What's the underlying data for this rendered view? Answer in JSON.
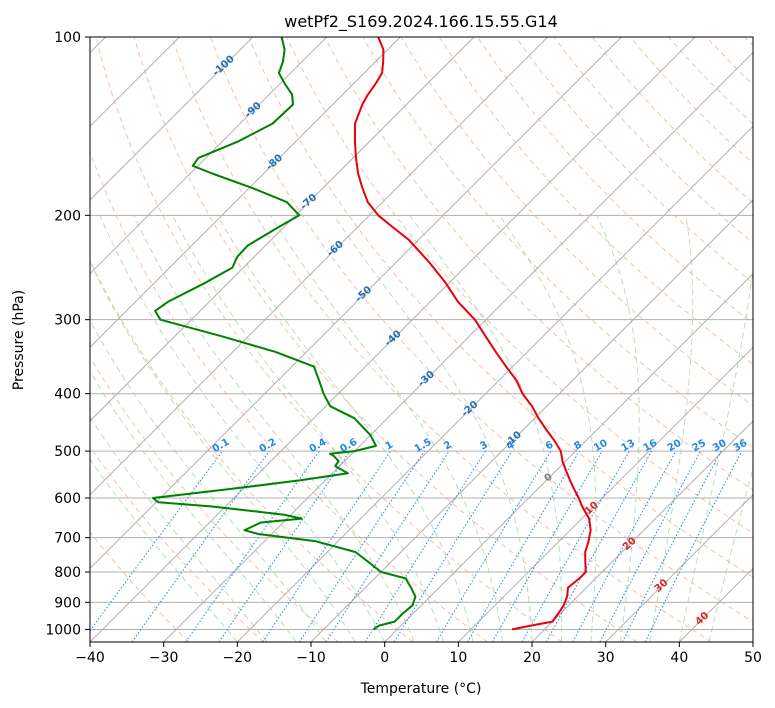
{
  "chart_data": {
    "type": "skew-t",
    "title": "wetPf2_S169.2024.166.15.55.G14",
    "xlabel": "Temperature (°C)",
    "ylabel": "Pressure (hPa)",
    "xlim": [
      -40,
      50
    ],
    "ylim": [
      1050,
      100
    ],
    "y_scale": "log",
    "grid": true,
    "x_ticks": [
      -40,
      -30,
      -20,
      -10,
      0,
      10,
      20,
      30,
      40,
      50
    ],
    "y_ticks": [
      100,
      200,
      300,
      400,
      500,
      600,
      700,
      800,
      900,
      1000
    ],
    "colors": {
      "temperature": "#e8000b",
      "dewpoint": "#008000",
      "isotherm": "#b0b0b0",
      "dry_adiabat": "#f4a582",
      "moist_adiabat": "#a6d7a0",
      "mixing_ratio": "#1e88e5",
      "isotherm_label_blue": "#1f6fb4",
      "isotherm_label_red": "#d62728"
    },
    "isotherm_labels": [
      {
        "t": -100,
        "p": 112,
        "text": "-100"
      },
      {
        "t": -90,
        "p": 133,
        "text": "-90"
      },
      {
        "t": -80,
        "p": 163,
        "text": "-80"
      },
      {
        "t": -70,
        "p": 190,
        "text": "-70"
      },
      {
        "t": -60,
        "p": 228,
        "text": "-60"
      },
      {
        "t": -50,
        "p": 272,
        "text": "-50"
      },
      {
        "t": -40,
        "p": 323,
        "text": "-40"
      },
      {
        "t": -30,
        "p": 378,
        "text": "-30"
      },
      {
        "t": -20,
        "p": 425,
        "text": "-20"
      },
      {
        "t": -10,
        "p": 478,
        "text": "-10"
      },
      {
        "t": 0,
        "p": 555,
        "text": "0"
      },
      {
        "t": 10,
        "p": 625,
        "text": "10"
      },
      {
        "t": 20,
        "p": 718,
        "text": "20"
      },
      {
        "t": 30,
        "p": 845,
        "text": "30"
      },
      {
        "t": 40,
        "p": 960,
        "text": "40"
      }
    ],
    "mixing_ratio_labels": [
      "0.1",
      "0.2",
      "0.4",
      "0.6",
      "1",
      "1.5",
      "2",
      "3",
      "4",
      "6",
      "8",
      "10",
      "13",
      "16",
      "20",
      "25",
      "30",
      "36"
    ],
    "temperature": {
      "p": [
        1000,
        985,
        970,
        940,
        910,
        880,
        850,
        820,
        800,
        770,
        740,
        710,
        680,
        650,
        620,
        600,
        580,
        560,
        540,
        520,
        500,
        480,
        460,
        440,
        420,
        400,
        380,
        360,
        340,
        320,
        300,
        280,
        260,
        240,
        220,
        210,
        200,
        190,
        180,
        170,
        160,
        150,
        140,
        130,
        125,
        120,
        115,
        110,
        105,
        100
      ],
      "t": [
        15.6,
        17.6,
        20.0,
        19.7,
        19.3,
        18.6,
        17.5,
        17.8,
        17.8,
        16.4,
        15.0,
        14.0,
        12.8,
        11.0,
        8.4,
        6.8,
        5.0,
        3.2,
        1.4,
        -0.4,
        -2.0,
        -4.3,
        -6.9,
        -9.5,
        -12.0,
        -15.0,
        -17.6,
        -20.9,
        -24.3,
        -27.8,
        -31.5,
        -36.2,
        -40.5,
        -45.5,
        -51.3,
        -55.0,
        -58.8,
        -62.0,
        -64.6,
        -67.2,
        -69.6,
        -72.0,
        -74.4,
        -76.0,
        -76.6,
        -77.0,
        -77.6,
        -79.0,
        -80.6,
        -83.0
      ]
    },
    "dewpoint": {
      "p": [
        1000,
        985,
        970,
        940,
        910,
        880,
        850,
        820,
        800,
        770,
        740,
        710,
        690,
        680,
        660,
        650,
        640,
        620,
        610,
        600,
        580,
        560,
        545,
        530,
        520,
        510,
        505,
        500,
        490,
        470,
        440,
        420,
        400,
        380,
        360,
        340,
        320,
        300,
        290,
        280,
        260,
        245,
        235,
        225,
        210,
        200,
        190,
        180,
        170,
        165,
        160,
        150,
        140,
        130,
        125,
        120,
        115,
        110,
        105,
        100
      ],
      "td": [
        -3.2,
        -3.0,
        -1.4,
        -1.4,
        -1.2,
        -2.0,
        -3.8,
        -5.8,
        -10.0,
        -13.0,
        -16.2,
        -23.0,
        -31.8,
        -34.2,
        -33.0,
        -28.0,
        -31.0,
        -42.0,
        -49.7,
        -51.0,
        -42.0,
        -33.4,
        -27.9,
        -30.6,
        -30.8,
        -32.1,
        -33.0,
        -30.0,
        -27.8,
        -30.0,
        -34.5,
        -39.4,
        -42.0,
        -44.4,
        -47.0,
        -54.2,
        -63.6,
        -74.2,
        -76.1,
        -75.6,
        -73.1,
        -71.5,
        -72.3,
        -72.4,
        -70.8,
        -69.5,
        -73.0,
        -79.5,
        -87.0,
        -90.7,
        -91.0,
        -87.8,
        -85.6,
        -85.4,
        -86.9,
        -89.3,
        -91.6,
        -92.6,
        -94.0,
        -96.1
      ]
    }
  }
}
